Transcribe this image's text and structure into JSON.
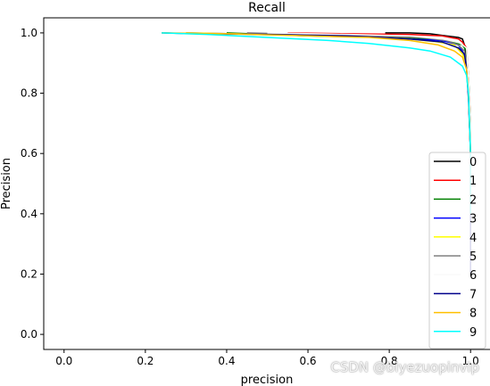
{
  "chart_data": {
    "type": "line",
    "title": "Recall",
    "xlabel": "precision",
    "ylabel": "Precision",
    "xlim": [
      -0.05,
      1.05
    ],
    "ylim": [
      -0.05,
      1.05
    ],
    "xticks": [
      "0.0",
      "0.2",
      "0.4",
      "0.6",
      "0.8",
      "1.0"
    ],
    "yticks": [
      "0.0",
      "0.2",
      "0.4",
      "0.6",
      "0.8",
      "1.0"
    ],
    "grid": false,
    "legend_position": "lower-right",
    "series": [
      {
        "name": "0",
        "color": "#000000",
        "x": [
          0.79,
          0.85,
          0.9,
          0.94,
          0.97,
          0.98,
          0.985,
          0.99,
          0.995,
          1.0,
          1.0
        ],
        "y": [
          1.0,
          1.0,
          0.997,
          0.99,
          0.985,
          0.98,
          0.96,
          0.9,
          0.8,
          0.6,
          0.4
        ]
      },
      {
        "name": "1",
        "color": "#ff0000",
        "x": [
          0.55,
          0.7,
          0.85,
          0.93,
          0.97,
          0.98,
          0.99,
          0.995,
          1.0,
          1.0
        ],
        "y": [
          1.0,
          0.997,
          0.995,
          0.99,
          0.98,
          0.97,
          0.95,
          0.85,
          0.7,
          0.4
        ]
      },
      {
        "name": "2",
        "color": "#008000",
        "x": [
          0.4,
          0.6,
          0.8,
          0.9,
          0.95,
          0.98,
          0.99,
          0.995,
          1.0,
          1.0
        ],
        "y": [
          1.0,
          0.99,
          0.985,
          0.98,
          0.97,
          0.96,
          0.94,
          0.85,
          0.7,
          0.4
        ]
      },
      {
        "name": "3",
        "color": "#0000ff",
        "x": [
          0.3,
          0.5,
          0.7,
          0.85,
          0.93,
          0.97,
          0.98,
          0.99,
          0.995,
          1.0,
          1.0
        ],
        "y": [
          1.0,
          0.995,
          0.99,
          0.98,
          0.975,
          0.96,
          0.94,
          0.9,
          0.8,
          0.6,
          0.4
        ]
      },
      {
        "name": "4",
        "color": "#ffff00",
        "x": [
          0.3,
          0.5,
          0.7,
          0.85,
          0.92,
          0.96,
          0.98,
          0.99,
          0.995,
          1.0,
          1.0
        ],
        "y": [
          1.0,
          0.995,
          0.99,
          0.98,
          0.97,
          0.96,
          0.93,
          0.9,
          0.8,
          0.6,
          0.4
        ]
      },
      {
        "name": "5",
        "color": "#808080",
        "x": [
          0.45,
          0.6,
          0.75,
          0.88,
          0.94,
          0.97,
          0.985,
          0.99,
          0.995,
          1.0,
          1.0
        ],
        "y": [
          1.0,
          0.995,
          0.99,
          0.985,
          0.975,
          0.96,
          0.94,
          0.9,
          0.8,
          0.6,
          0.4
        ]
      },
      {
        "name": "6",
        "color": "#fafafa",
        "x": [
          0.5,
          0.7,
          0.85,
          0.93,
          0.97,
          0.99,
          0.995,
          1.0,
          1.0
        ],
        "y": [
          1.0,
          0.995,
          0.99,
          0.98,
          0.97,
          0.95,
          0.85,
          0.7,
          0.4
        ]
      },
      {
        "name": "7",
        "color": "#00008b",
        "x": [
          0.24,
          0.3,
          0.5,
          0.7,
          0.85,
          0.93,
          0.97,
          0.985,
          0.99,
          0.995,
          1.0,
          1.0,
          1.0
        ],
        "y": [
          1.0,
          0.998,
          0.995,
          0.99,
          0.98,
          0.97,
          0.95,
          0.93,
          0.88,
          0.78,
          0.6,
          0.4,
          0.2
        ]
      },
      {
        "name": "8",
        "color": "#ffc000",
        "x": [
          0.24,
          0.4,
          0.6,
          0.75,
          0.85,
          0.92,
          0.96,
          0.98,
          0.99,
          0.995,
          1.0,
          1.0
        ],
        "y": [
          1.0,
          0.997,
          0.99,
          0.985,
          0.975,
          0.96,
          0.94,
          0.92,
          0.88,
          0.8,
          0.6,
          0.4
        ]
      },
      {
        "name": "9",
        "color": "#00ffff",
        "x": [
          0.24,
          0.35,
          0.5,
          0.65,
          0.75,
          0.85,
          0.9,
          0.95,
          0.98,
          0.99,
          0.995,
          1.0,
          1.0
        ],
        "y": [
          1.0,
          0.995,
          0.985,
          0.975,
          0.965,
          0.95,
          0.94,
          0.92,
          0.89,
          0.86,
          0.8,
          0.6,
          0.4
        ]
      }
    ]
  },
  "watermark": "CSDN @biyezuopinvip"
}
